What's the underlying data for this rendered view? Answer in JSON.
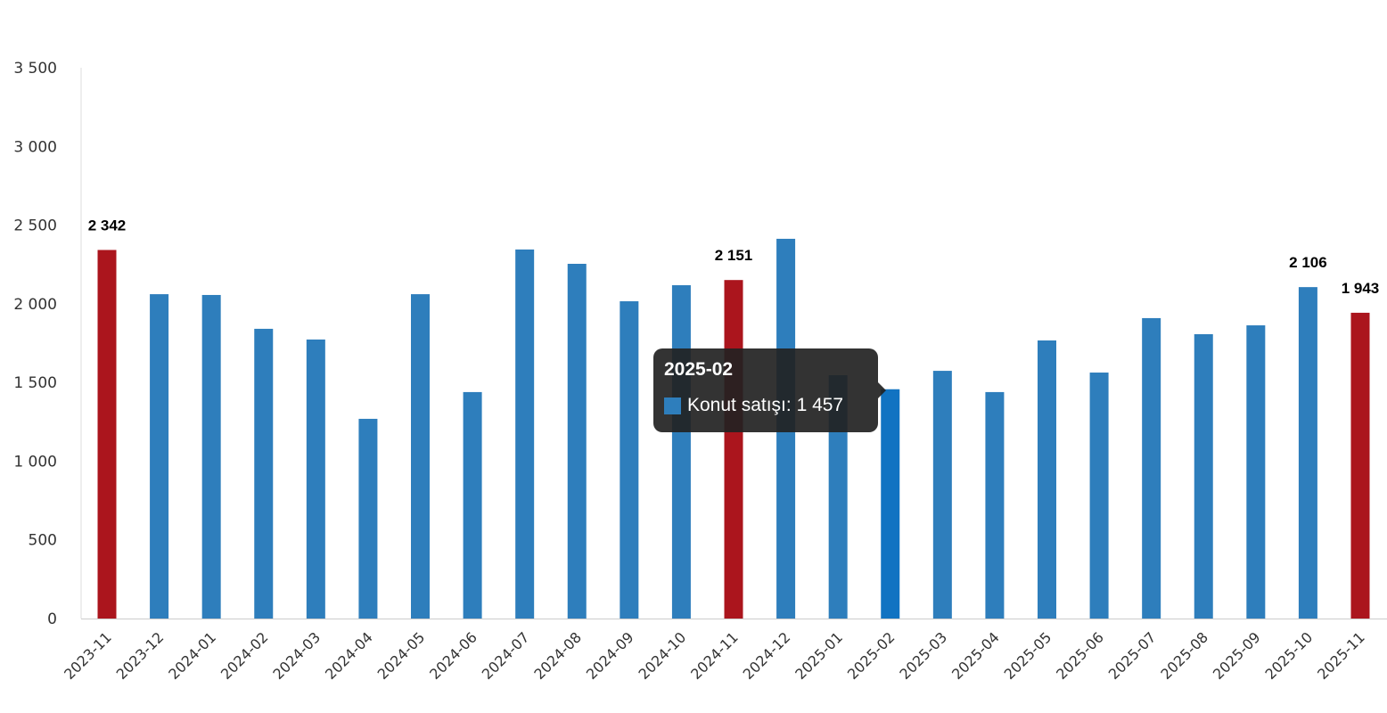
{
  "chart_data": {
    "type": "bar",
    "title": "",
    "xlabel": "",
    "ylabel": "",
    "ylim": [
      0,
      3500
    ],
    "yticks": [
      0,
      500,
      1000,
      1500,
      2000,
      2500,
      3000,
      3500
    ],
    "ytick_labels": [
      "0",
      "500",
      "1 000",
      "1 500",
      "2 000",
      "2 500",
      "3 000",
      "3 500"
    ],
    "grid": false,
    "categories": [
      "2023-11",
      "2023-12",
      "2024-01",
      "2024-02",
      "2024-03",
      "2024-04",
      "2024-05",
      "2024-06",
      "2024-07",
      "2024-08",
      "2024-09",
      "2024-10",
      "2024-11",
      "2024-12",
      "2025-01",
      "2025-02",
      "2025-03",
      "2025-04",
      "2025-05",
      "2025-06",
      "2025-07",
      "2025-08",
      "2025-09",
      "2025-10",
      "2025-11"
    ],
    "series": [
      {
        "name": "Konut satışı",
        "values": [
          2342,
          2061,
          2056,
          1841,
          1773,
          1269,
          2061,
          1439,
          2345,
          2254,
          2016,
          2118,
          2151,
          2413,
          1546,
          1457,
          1574,
          1439,
          1767,
          1563,
          1909,
          1807,
          1863,
          2106,
          1943
        ]
      }
    ],
    "highlighted": [
      "2023-11",
      "2024-11",
      "2025-11"
    ],
    "hovered": "2025-02",
    "data_labels": [
      {
        "category": "2023-11",
        "text": "2 342"
      },
      {
        "category": "2024-11",
        "text": "2 151"
      },
      {
        "category": "2025-10",
        "text": "2 106"
      },
      {
        "category": "2025-11",
        "text": "1 943"
      }
    ],
    "colors": {
      "bar": "#2e7ebc",
      "highlight": "#ab151d",
      "hover": "#1173c2"
    }
  },
  "tooltip": {
    "title": "2025-02",
    "series_label": "Konut satışı: 1 457"
  }
}
